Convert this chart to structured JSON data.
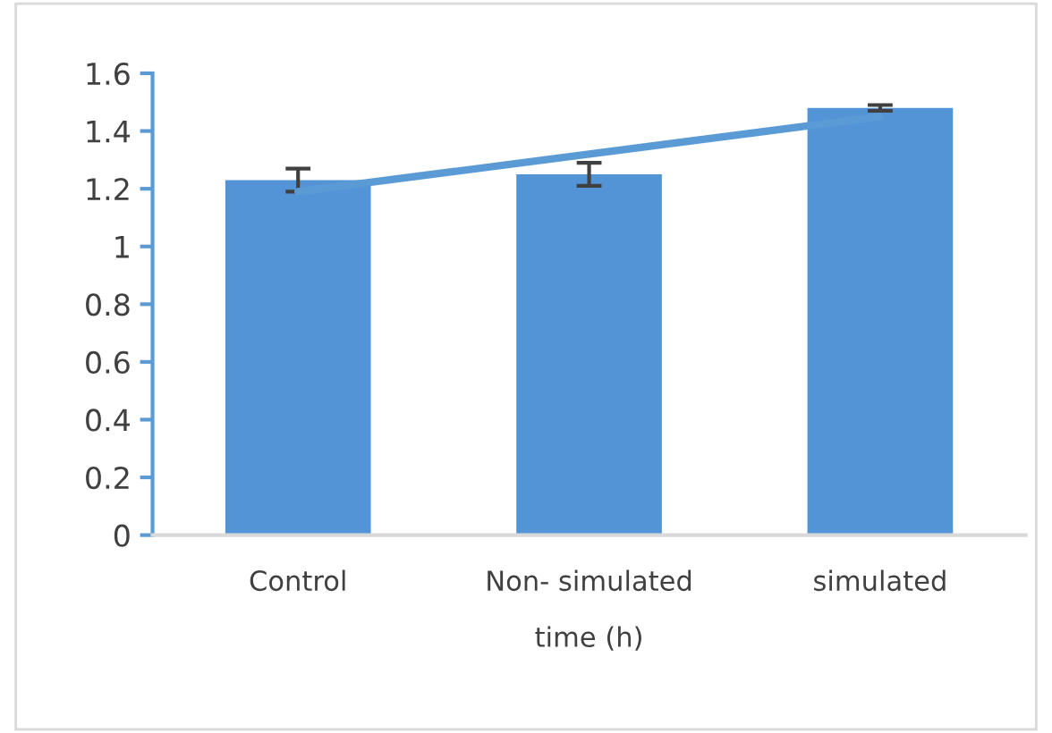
{
  "chart_data": {
    "type": "bar",
    "xlabel": "time (h)",
    "categories": [
      "Control",
      "Non- simulated",
      "simulated"
    ],
    "series": [
      {
        "color": "#5294d6",
        "values": [
          1.23,
          1.25,
          1.48
        ],
        "errors": [
          0.04,
          0.04,
          0.01
        ]
      },
      {
        "type": "line",
        "color": "#5b9bd5",
        "values": [
          1.19,
          1.32,
          1.45
        ],
        "marker": "none",
        "line_style": "solid"
      }
    ],
    "ylim": [
      0,
      1.6
    ],
    "yticks": [
      0,
      0.2,
      0.4,
      0.6,
      0.8,
      1,
      1.2,
      1.4,
      1.6
    ],
    "grid": false,
    "legend": false
  }
}
